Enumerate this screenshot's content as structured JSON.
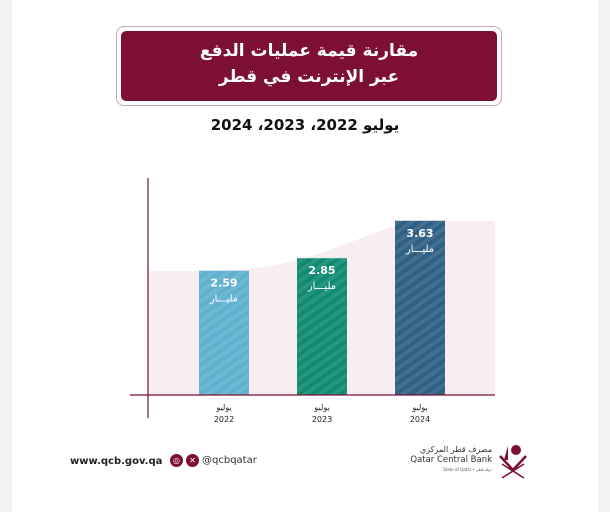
{
  "title_lines": [
    "مقارنة قيمة عمليات الدفع",
    "عبر الإنترنت في قطر"
  ],
  "subtitle": "يوليو 2022، 2023، 2024",
  "chart_data": {
    "type": "bar",
    "categories": [
      "يوليو 2022",
      "يوليو 2023",
      "يوليو 2024"
    ],
    "category_month": "يوليو",
    "category_years": [
      "2022",
      "2023",
      "2024"
    ],
    "values": [
      2.59,
      2.85,
      3.63
    ],
    "value_labels": [
      "2.59",
      "2.85",
      "3.63"
    ],
    "unit_label": "مليـــار",
    "colors": [
      "#5fb0cf",
      "#0f8a73",
      "#2f5f82"
    ],
    "grid": false
  },
  "footer": {
    "website": "www.qcb.gov.qa",
    "social_handle": "@qcbqatar",
    "social_icons": [
      "instagram-icon",
      "x-icon"
    ],
    "logo_ar": "مصرف قطر المركزي",
    "logo_en": "Qatar Central Bank",
    "logo_sub": "State of Qatar • دولة قطر"
  },
  "colors": {
    "brand": "#7d0f35",
    "area": "#f8eef1"
  }
}
